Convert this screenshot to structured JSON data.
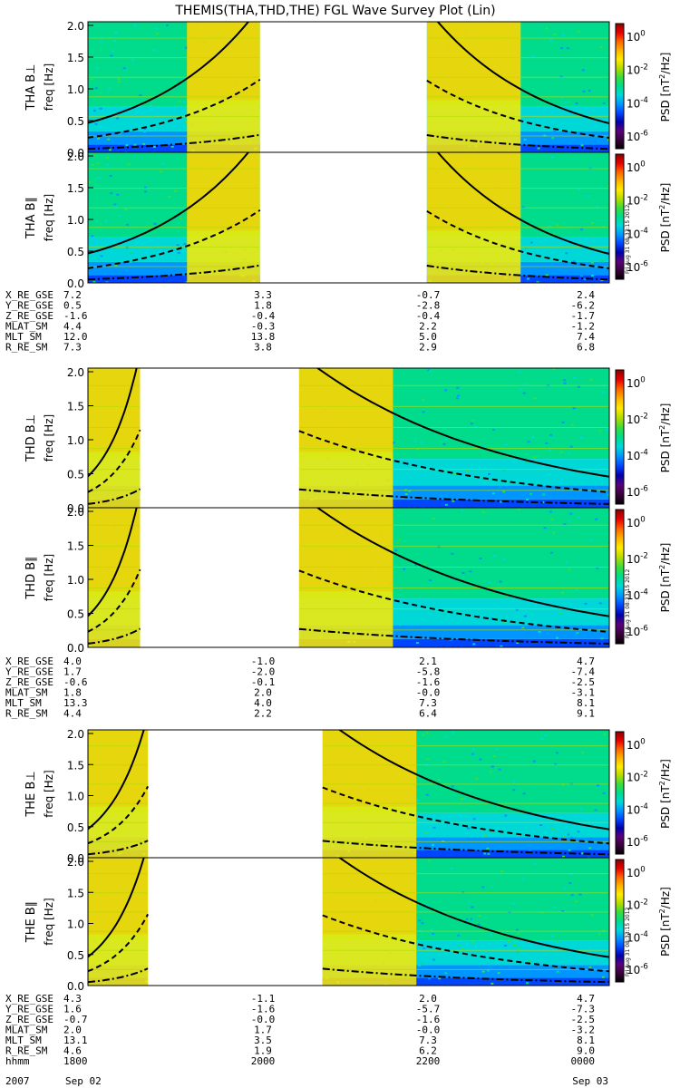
{
  "title": "THEMIS(THA,THD,THE) FGL Wave Survey Plot (Lin)",
  "y_ticks": [
    "0.0",
    "0.5",
    "1.0",
    "1.5",
    "2.0"
  ],
  "colorbar": {
    "label": "PSD [nT^2/Hz]",
    "tick_labels": [
      "10^0",
      "10^-2",
      "10^-4",
      "10^-6"
    ],
    "stamp": "Fri Aug 31 08:33:15 2012"
  },
  "colors": {
    "psd_ramp": [
      "#000000",
      "#3a003a",
      "#5a007a",
      "#0000a8",
      "#0046ff",
      "#0096ff",
      "#00d8d8",
      "#00dc8c",
      "#3cdc3c",
      "#b4dc00",
      "#ffeb00",
      "#ffb400",
      "#ff6400",
      "#e60000",
      "#8c0000"
    ],
    "curve": "#000000"
  },
  "chart_data": [
    {
      "type": "heatmap",
      "probe": "THA",
      "panels": [
        {
          "ylabel": "THA B⊥",
          "ysub": "freq [Hz]"
        },
        {
          "ylabel": "THA B∥",
          "ysub": "freq [Hz]"
        }
      ],
      "ylim": [
        0,
        2.0
      ],
      "data_gaps": [
        [
          0.33,
          0.65
        ]
      ],
      "ephemeris_rows": [
        {
          "name": "X_RE_GSE",
          "values": [
            "7.2",
            "3.3",
            "-0.7",
            "2.4"
          ]
        },
        {
          "name": "Y_RE_GSE",
          "values": [
            "0.5",
            "1.8",
            "-2.8",
            "-6.2"
          ]
        },
        {
          "name": "Z_RE_GSE",
          "values": [
            "-1.6",
            "-0.4",
            "-0.4",
            "-1.7"
          ]
        },
        {
          "name": "MLAT_SM",
          "values": [
            "4.4",
            "-0.3",
            "2.2",
            "-1.2"
          ]
        },
        {
          "name": "MLT_SM",
          "values": [
            "12.0",
            "13.8",
            "5.0",
            "7.4"
          ]
        },
        {
          "name": "R_RE_SM",
          "values": [
            "7.3",
            "3.8",
            "2.9",
            "6.8"
          ]
        }
      ]
    },
    {
      "type": "heatmap",
      "probe": "THD",
      "panels": [
        {
          "ylabel": "THD B⊥",
          "ysub": "freq [Hz]"
        },
        {
          "ylabel": "THD B∥",
          "ysub": "freq [Hz]"
        }
      ],
      "ylim": [
        0,
        2.0
      ],
      "data_gaps": [
        [
          0.1,
          0.405
        ]
      ],
      "ephemeris_rows": [
        {
          "name": "X_RE_GSE",
          "values": [
            "4.0",
            "-1.0",
            "2.1",
            "4.7"
          ]
        },
        {
          "name": "Y_RE_GSE",
          "values": [
            "1.7",
            "-2.0",
            "-5.8",
            "-7.4"
          ]
        },
        {
          "name": "Z_RE_GSE",
          "values": [
            "-0.6",
            "-0.1",
            "-1.6",
            "-2.5"
          ]
        },
        {
          "name": "MLAT_SM",
          "values": [
            "1.8",
            "2.0",
            "-0.0",
            "-3.1"
          ]
        },
        {
          "name": "MLT_SM",
          "values": [
            "13.3",
            "4.0",
            "7.3",
            "8.1"
          ]
        },
        {
          "name": "R_RE_SM",
          "values": [
            "4.4",
            "2.2",
            "6.4",
            "9.1"
          ]
        }
      ]
    },
    {
      "type": "heatmap",
      "probe": "THE",
      "panels": [
        {
          "ylabel": "THE B⊥",
          "ysub": "freq [Hz]"
        },
        {
          "ylabel": "THE B∥",
          "ysub": "freq [Hz]"
        }
      ],
      "ylim": [
        0,
        2.0
      ],
      "data_gaps": [
        [
          0.115,
          0.45
        ]
      ],
      "ephemeris_rows": [
        {
          "name": "X_RE_GSE",
          "values": [
            "4.3",
            "-1.1",
            "2.0",
            "4.7"
          ]
        },
        {
          "name": "Y_RE_GSE",
          "values": [
            "1.6",
            "-1.6",
            "-5.7",
            "-7.3"
          ]
        },
        {
          "name": "Z_RE_GSE",
          "values": [
            "-0.7",
            "-0.0",
            "-1.6",
            "-2.5"
          ]
        },
        {
          "name": "MLAT_SM",
          "values": [
            "2.0",
            "1.7",
            "-0.0",
            "-3.2"
          ]
        },
        {
          "name": "MLT_SM",
          "values": [
            "13.1",
            "3.5",
            "7.3",
            "8.1"
          ]
        },
        {
          "name": "R_RE_SM",
          "values": [
            "4.6",
            "1.9",
            "6.2",
            "9.0"
          ]
        },
        {
          "name": "hhmm",
          "values": [
            "1800",
            "2000",
            "2200",
            "0000"
          ]
        }
      ]
    }
  ],
  "time_axis": {
    "year": "2007",
    "start_date": "Sep 02",
    "end_date": "Sep 03"
  }
}
